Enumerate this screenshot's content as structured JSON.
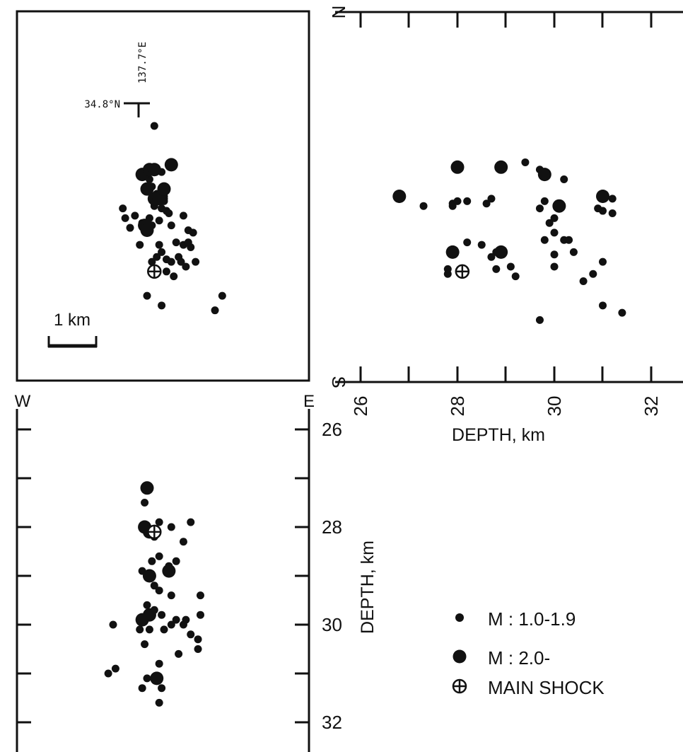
{
  "chart_data": [
    {
      "type": "scatter",
      "panel": "map",
      "coordinate_label_lon": "137.7°E",
      "coordinate_label_lat": "34.8°N",
      "scale_bar_label": "1 km",
      "main_shock": {
        "x": 0.3,
        "y": -6.0
      },
      "series": [
        {
          "name": "M : 1.0-1.9",
          "points": [
            {
              "x": 0.3,
              "y": 0.0
            },
            {
              "x": -1.0,
              "y": -3.4
            },
            {
              "x": -0.9,
              "y": -3.8
            },
            {
              "x": -0.7,
              "y": -4.2
            },
            {
              "x": -0.5,
              "y": -3.7
            },
            {
              "x": -0.2,
              "y": -4.0
            },
            {
              "x": -0.3,
              "y": -4.9
            },
            {
              "x": 0.0,
              "y": -4.3
            },
            {
              "x": 0.2,
              "y": -4.1
            },
            {
              "x": 0.5,
              "y": -3.9
            },
            {
              "x": 0.6,
              "y": -3.4
            },
            {
              "x": 0.7,
              "y": -3.1
            },
            {
              "x": 0.8,
              "y": -3.5
            },
            {
              "x": 0.3,
              "y": -3.3
            },
            {
              "x": 0.4,
              "y": -2.8
            },
            {
              "x": 0.6,
              "y": -1.9
            },
            {
              "x": 0.1,
              "y": -2.2
            },
            {
              "x": 0.2,
              "y": -2.5
            },
            {
              "x": 0.7,
              "y": -2.9
            },
            {
              "x": 0.9,
              "y": -3.6
            },
            {
              "x": 1.0,
              "y": -4.1
            },
            {
              "x": 1.2,
              "y": -4.8
            },
            {
              "x": 1.3,
              "y": -5.4
            },
            {
              "x": 1.0,
              "y": -5.6
            },
            {
              "x": 0.8,
              "y": -5.5
            },
            {
              "x": 0.6,
              "y": -5.2
            },
            {
              "x": 0.4,
              "y": -5.4
            },
            {
              "x": 0.2,
              "y": -5.6
            },
            {
              "x": 0.0,
              "y": -4.4
            },
            {
              "x": 1.5,
              "y": -4.9
            },
            {
              "x": 1.4,
              "y": -5.6
            },
            {
              "x": 1.6,
              "y": -5.8
            },
            {
              "x": 2.0,
              "y": -5.6
            },
            {
              "x": 1.8,
              "y": -5.0
            },
            {
              "x": 1.9,
              "y": -4.4
            },
            {
              "x": 1.7,
              "y": -4.8
            },
            {
              "x": 1.7,
              "y": -4.3
            },
            {
              "x": 1.5,
              "y": -3.7
            },
            {
              "x": 1.1,
              "y": -6.2
            },
            {
              "x": 0.0,
              "y": -7.0
            },
            {
              "x": 0.6,
              "y": -7.4
            },
            {
              "x": 2.8,
              "y": -7.6
            },
            {
              "x": 3.1,
              "y": -7.0
            },
            {
              "x": 0.3,
              "y": -6.0
            },
            {
              "x": 0.8,
              "y": -6.0
            },
            {
              "x": 0.7,
              "y": -3.0
            },
            {
              "x": 0.5,
              "y": -4.9
            },
            {
              "x": 0.1,
              "y": -3.8
            }
          ]
        },
        {
          "name": "M : 2.0-",
          "points": [
            {
              "x": -0.2,
              "y": -2.0
            },
            {
              "x": 0.1,
              "y": -1.8
            },
            {
              "x": 0.3,
              "y": -1.8
            },
            {
              "x": 1.0,
              "y": -1.6
            },
            {
              "x": 0.0,
              "y": -2.6
            },
            {
              "x": 0.3,
              "y": -3.0
            },
            {
              "x": 0.5,
              "y": -3.0
            },
            {
              "x": 0.7,
              "y": -2.6
            },
            {
              "x": -0.1,
              "y": -4.1
            },
            {
              "x": 0.0,
              "y": -4.3
            }
          ]
        }
      ]
    },
    {
      "type": "scatter",
      "panel": "north-south section",
      "xlabel": "DEPTH, km",
      "top_label": "N",
      "bottom_label": "S",
      "xlim": [
        26,
        32
      ],
      "xticks": [
        26,
        28,
        30,
        32
      ],
      "main_shock": {
        "x": 28.1,
        "y": -6.0
      },
      "series": [
        {
          "name": "M : 1.0-1.9",
          "points": [
            {
              "x": 29.4,
              "y": -1.5
            },
            {
              "x": 29.7,
              "y": -1.8
            },
            {
              "x": 30.2,
              "y": -2.2
            },
            {
              "x": 27.3,
              "y": -3.3
            },
            {
              "x": 27.9,
              "y": -3.2
            },
            {
              "x": 28.2,
              "y": -3.1
            },
            {
              "x": 28.6,
              "y": -3.2
            },
            {
              "x": 28.7,
              "y": -3.0
            },
            {
              "x": 27.9,
              "y": -3.3
            },
            {
              "x": 29.8,
              "y": -3.1
            },
            {
              "x": 29.7,
              "y": -3.4
            },
            {
              "x": 30.0,
              "y": -3.8
            },
            {
              "x": 29.9,
              "y": -4.0
            },
            {
              "x": 30.0,
              "y": -4.4
            },
            {
              "x": 29.8,
              "y": -4.7
            },
            {
              "x": 30.2,
              "y": -4.7
            },
            {
              "x": 30.3,
              "y": -4.7
            },
            {
              "x": 30.4,
              "y": -5.2
            },
            {
              "x": 30.0,
              "y": -5.3
            },
            {
              "x": 30.0,
              "y": -5.8
            },
            {
              "x": 31.0,
              "y": -3.5
            },
            {
              "x": 31.2,
              "y": -3.0
            },
            {
              "x": 31.2,
              "y": -3.6
            },
            {
              "x": 30.9,
              "y": -3.4
            },
            {
              "x": 28.2,
              "y": -4.8
            },
            {
              "x": 28.5,
              "y": -4.9
            },
            {
              "x": 28.8,
              "y": -5.2
            },
            {
              "x": 28.7,
              "y": -5.4
            },
            {
              "x": 28.8,
              "y": -5.9
            },
            {
              "x": 29.1,
              "y": -5.8
            },
            {
              "x": 29.2,
              "y": -6.2
            },
            {
              "x": 27.8,
              "y": -6.1
            },
            {
              "x": 27.8,
              "y": -5.9
            },
            {
              "x": 31.0,
              "y": -5.6
            },
            {
              "x": 30.8,
              "y": -6.1
            },
            {
              "x": 30.6,
              "y": -6.4
            },
            {
              "x": 31.0,
              "y": -7.4
            },
            {
              "x": 31.4,
              "y": -7.7
            },
            {
              "x": 29.7,
              "y": -8.0
            },
            {
              "x": 28.0,
              "y": -3.1
            }
          ]
        },
        {
          "name": "M : 2.0-",
          "points": [
            {
              "x": 28.0,
              "y": -1.7
            },
            {
              "x": 28.9,
              "y": -1.7
            },
            {
              "x": 29.8,
              "y": -2.0
            },
            {
              "x": 26.8,
              "y": -2.9
            },
            {
              "x": 30.1,
              "y": -3.3
            },
            {
              "x": 31.0,
              "y": -2.9
            },
            {
              "x": 27.9,
              "y": -5.2
            },
            {
              "x": 28.9,
              "y": -5.2
            }
          ]
        }
      ]
    },
    {
      "type": "scatter",
      "panel": "west-east section",
      "ylabel": "DEPTH, km",
      "left_label": "W",
      "right_label": "E",
      "ylim": [
        26,
        32
      ],
      "yticks": [
        26,
        28,
        30,
        32
      ],
      "main_shock": {
        "x": 0.3,
        "y": 28.1
      },
      "series": [
        {
          "name": "M : 1.0-1.9",
          "points": [
            {
              "x": -0.1,
              "y": 27.5
            },
            {
              "x": 0.5,
              "y": 27.9
            },
            {
              "x": 1.0,
              "y": 28.0
            },
            {
              "x": 1.8,
              "y": 27.9
            },
            {
              "x": 1.5,
              "y": 28.3
            },
            {
              "x": 0.3,
              "y": 28.2
            },
            {
              "x": 0.2,
              "y": 28.7
            },
            {
              "x": 0.5,
              "y": 28.6
            },
            {
              "x": 0.9,
              "y": 28.8
            },
            {
              "x": 1.2,
              "y": 28.7
            },
            {
              "x": -0.2,
              "y": 28.9
            },
            {
              "x": 0.3,
              "y": 29.2
            },
            {
              "x": 0.5,
              "y": 29.3
            },
            {
              "x": 1.0,
              "y": 29.4
            },
            {
              "x": 0.0,
              "y": 29.6
            },
            {
              "x": 0.3,
              "y": 29.7
            },
            {
              "x": 0.6,
              "y": 29.8
            },
            {
              "x": 1.2,
              "y": 29.9
            },
            {
              "x": 1.6,
              "y": 29.9
            },
            {
              "x": 2.2,
              "y": 29.8
            },
            {
              "x": -1.4,
              "y": 30.0
            },
            {
              "x": -0.3,
              "y": 30.1
            },
            {
              "x": 0.1,
              "y": 30.1
            },
            {
              "x": 0.7,
              "y": 30.1
            },
            {
              "x": 1.0,
              "y": 30.0
            },
            {
              "x": 1.5,
              "y": 30.0
            },
            {
              "x": 1.8,
              "y": 30.2
            },
            {
              "x": 2.1,
              "y": 30.3
            },
            {
              "x": -0.1,
              "y": 30.4
            },
            {
              "x": 1.3,
              "y": 30.6
            },
            {
              "x": 2.1,
              "y": 30.5
            },
            {
              "x": 0.5,
              "y": 30.8
            },
            {
              "x": -1.6,
              "y": 31.0
            },
            {
              "x": -1.3,
              "y": 30.9
            },
            {
              "x": 0.0,
              "y": 31.1
            },
            {
              "x": -0.2,
              "y": 31.3
            },
            {
              "x": 0.6,
              "y": 31.3
            },
            {
              "x": 0.5,
              "y": 31.6
            },
            {
              "x": 2.2,
              "y": 29.4
            }
          ]
        },
        {
          "name": "M : 2.0-",
          "points": [
            {
              "x": 0.0,
              "y": 27.2
            },
            {
              "x": -0.1,
              "y": 28.0
            },
            {
              "x": 0.1,
              "y": 28.1
            },
            {
              "x": 0.9,
              "y": 28.9
            },
            {
              "x": 0.1,
              "y": 29.0
            },
            {
              "x": 0.1,
              "y": 29.8
            },
            {
              "x": -0.2,
              "y": 29.9
            },
            {
              "x": 0.4,
              "y": 31.1
            }
          ]
        }
      ]
    }
  ],
  "legend": {
    "small_label": "M : 1.0-1.9",
    "large_label": "M : 2.0-",
    "main_shock_label": "MAIN SHOCK"
  },
  "colors": {
    "ink": "#111111",
    "background": "#ffffff"
  }
}
